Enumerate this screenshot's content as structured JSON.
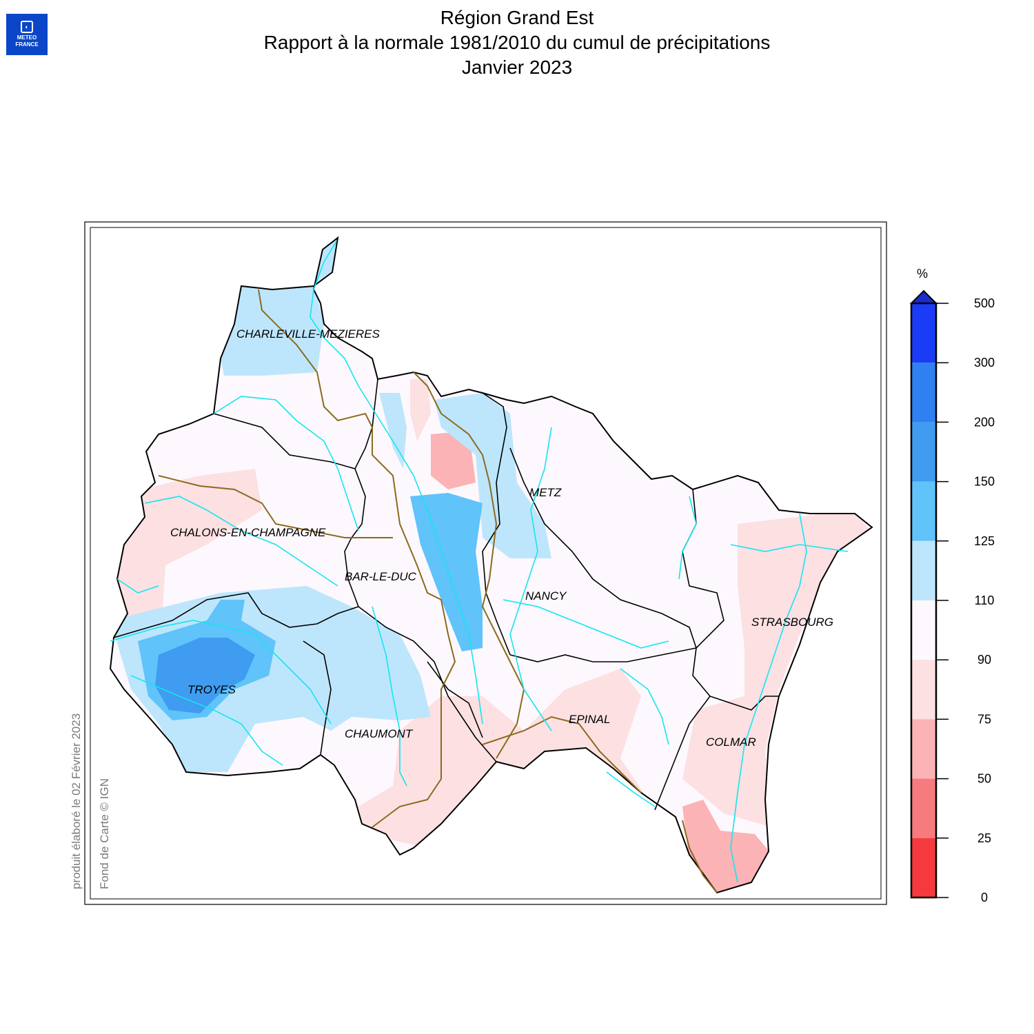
{
  "logo": {
    "line1": "METEO",
    "line2": "FRANCE"
  },
  "title": {
    "line1": "Région Grand Est",
    "line2": "Rapport à la normale 1981/2010 du cumul de précipitations",
    "line3": "Janvier 2023"
  },
  "credits": {
    "produced": "produit élaboré le 02 Février 2023",
    "basemap": "Fond de Carte © IGN"
  },
  "legend": {
    "unit": "%",
    "ticks": [
      "500",
      "300",
      "200",
      "150",
      "125",
      "110",
      "90",
      "75",
      "50",
      "25",
      "0"
    ],
    "colors": [
      "#1a3cf5",
      "#2f80f0",
      "#3f9cf0",
      "#60c3fa",
      "#bde6fc",
      "#fdf8fd",
      "#fce0e2",
      "#fbb3b6",
      "#f77a7e",
      "#f43a3e"
    ],
    "overflow_color": "#1a2bd0"
  },
  "cities": [
    {
      "name": "CHARLEVILLE-MEZIERES"
    },
    {
      "name": "METZ"
    },
    {
      "name": "CHALONS-EN-CHAMPAGNE"
    },
    {
      "name": "BAR-LE-DUC"
    },
    {
      "name": "NANCY"
    },
    {
      "name": "STRASBOURG"
    },
    {
      "name": "TROYES"
    },
    {
      "name": "EPINAL"
    },
    {
      "name": "CHAUMONT"
    },
    {
      "name": "COLMAR"
    }
  ]
}
